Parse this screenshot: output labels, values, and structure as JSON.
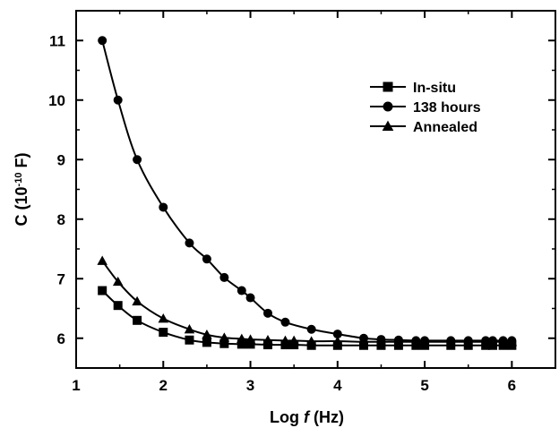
{
  "chart_data": {
    "type": "line",
    "xlabel_main": "Log ",
    "xlabel_var": "f",
    "xlabel_unit": " (Hz)",
    "ylabel_main": "C (10",
    "ylabel_exp": "-10",
    "ylabel_unit": " F)",
    "xlim": [
      1,
      6.5
    ],
    "ylim": [
      5.5,
      11.5
    ],
    "xticks": [
      1,
      2,
      3,
      4,
      5,
      6
    ],
    "yticks": [
      6,
      7,
      8,
      9,
      10,
      11
    ],
    "xtick_labels": [
      "1",
      "2",
      "3",
      "4",
      "5",
      "6"
    ],
    "ytick_labels": [
      "6",
      "7",
      "8",
      "9",
      "10",
      "11"
    ],
    "legend_position": "top-right",
    "series": [
      {
        "name": "In-situ",
        "marker": "square",
        "x": [
          1.3,
          1.48,
          1.7,
          2.0,
          2.3,
          2.5,
          2.7,
          2.9,
          3.0,
          3.2,
          3.4,
          3.5,
          3.7,
          4.0,
          4.3,
          4.5,
          4.7,
          4.9,
          5.0,
          5.3,
          5.5,
          5.7,
          5.78,
          5.9,
          6.0
        ],
        "y": [
          6.8,
          6.55,
          6.3,
          6.1,
          5.97,
          5.93,
          5.91,
          5.9,
          5.9,
          5.89,
          5.89,
          5.89,
          5.88,
          5.88,
          5.88,
          5.88,
          5.88,
          5.88,
          5.88,
          5.88,
          5.88,
          5.88,
          5.88,
          5.88,
          5.88
        ]
      },
      {
        "name": "138 hours",
        "marker": "circle",
        "x": [
          1.3,
          1.48,
          1.7,
          2.0,
          2.3,
          2.5,
          2.7,
          2.9,
          3.0,
          3.2,
          3.4,
          3.7,
          4.0,
          4.3,
          4.5,
          4.7,
          4.9,
          5.0,
          5.3,
          5.5,
          5.7,
          5.78,
          5.9,
          6.0
        ],
        "y": [
          11.0,
          10.0,
          9.0,
          8.2,
          7.6,
          7.33,
          7.02,
          6.8,
          6.68,
          6.42,
          6.27,
          6.15,
          6.07,
          6.0,
          5.98,
          5.97,
          5.96,
          5.96,
          5.96,
          5.96,
          5.96,
          5.96,
          5.96,
          5.96
        ]
      },
      {
        "name": "Annealed",
        "marker": "triangle",
        "x": [
          1.3,
          1.48,
          1.7,
          2.0,
          2.3,
          2.5,
          2.7,
          2.9,
          3.0,
          3.2,
          3.4,
          3.5,
          3.7,
          4.0,
          4.3,
          4.5,
          4.7,
          4.9,
          5.0,
          5.3,
          5.5,
          5.7,
          5.78,
          5.9,
          6.0
        ],
        "y": [
          7.3,
          6.95,
          6.62,
          6.33,
          6.15,
          6.06,
          6.01,
          5.99,
          5.98,
          5.97,
          5.96,
          5.96,
          5.95,
          5.95,
          5.94,
          5.94,
          5.94,
          5.94,
          5.94,
          5.94,
          5.94,
          5.94,
          5.94,
          5.94,
          5.94
        ]
      }
    ]
  }
}
